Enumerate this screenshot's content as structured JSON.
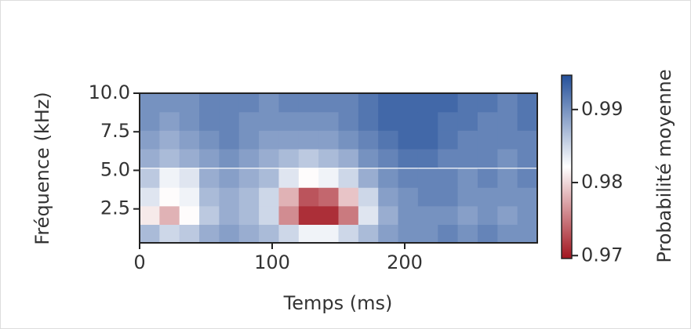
{
  "chart_data": {
    "type": "heatmap",
    "xlabel": "Temps (ms)",
    "ylabel": "Fréquence (kHz)",
    "colorbar_label": "Probabilité moyenne",
    "x": [
      7.5,
      22.5,
      37.5,
      52.5,
      67.5,
      82.5,
      97.5,
      112.5,
      127.5,
      142.5,
      157.5,
      172.5,
      187.5,
      202.5,
      217.5,
      232.5,
      247.5,
      262.5,
      277.5,
      292.5
    ],
    "y": [
      0.9,
      2.1,
      3.3,
      4.5,
      5.8,
      7.0,
      8.2,
      9.4
    ],
    "z": [
      [
        0.987,
        0.985,
        0.986,
        0.988,
        0.989,
        0.988,
        0.987,
        0.985,
        0.983,
        0.983,
        0.985,
        0.987,
        0.989,
        0.99,
        0.99,
        0.991,
        0.99,
        0.991,
        0.99,
        0.99
      ],
      [
        0.981,
        0.978,
        0.982,
        0.986,
        0.988,
        0.987,
        0.985,
        0.976,
        0.971,
        0.971,
        0.975,
        0.984,
        0.988,
        0.99,
        0.99,
        0.99,
        0.989,
        0.99,
        0.989,
        0.99
      ],
      [
        0.984,
        0.982,
        0.983,
        0.987,
        0.988,
        0.987,
        0.985,
        0.978,
        0.973,
        0.974,
        0.979,
        0.985,
        0.989,
        0.99,
        0.991,
        0.991,
        0.99,
        0.99,
        0.99,
        0.99
      ],
      [
        0.986,
        0.983,
        0.984,
        0.988,
        0.989,
        0.988,
        0.987,
        0.984,
        0.982,
        0.983,
        0.985,
        0.988,
        0.99,
        0.991,
        0.991,
        0.991,
        0.99,
        0.991,
        0.99,
        0.991
      ],
      [
        0.988,
        0.987,
        0.988,
        0.989,
        0.99,
        0.989,
        0.988,
        0.987,
        0.986,
        0.987,
        0.988,
        0.99,
        0.991,
        0.992,
        0.992,
        0.991,
        0.991,
        0.991,
        0.99,
        0.991
      ],
      [
        0.989,
        0.988,
        0.989,
        0.99,
        0.991,
        0.99,
        0.989,
        0.989,
        0.989,
        0.989,
        0.99,
        0.991,
        0.992,
        0.993,
        0.993,
        0.992,
        0.991,
        0.991,
        0.991,
        0.991
      ],
      [
        0.99,
        0.989,
        0.99,
        0.991,
        0.991,
        0.99,
        0.99,
        0.99,
        0.99,
        0.99,
        0.991,
        0.992,
        0.993,
        0.993,
        0.993,
        0.992,
        0.992,
        0.991,
        0.991,
        0.992
      ],
      [
        0.99,
        0.99,
        0.99,
        0.991,
        0.991,
        0.991,
        0.99,
        0.991,
        0.991,
        0.991,
        0.991,
        0.992,
        0.993,
        0.993,
        0.993,
        0.993,
        0.992,
        0.992,
        0.991,
        0.992
      ]
    ],
    "xlim": [
      0,
      300
    ],
    "xticks": [
      0,
      100,
      200
    ],
    "ylim": [
      0.3,
      10.0
    ],
    "yticks": [
      {
        "value": 10,
        "label": "10.0"
      },
      7.5,
      {
        "value": 5,
        "label": "5.0"
      },
      2.5
    ],
    "clim": [
      0.9696,
      0.9947
    ],
    "cticks": [
      0.97,
      0.98,
      0.99
    ],
    "colormap": [
      "#a2151f",
      "#ffffff",
      "#24509a"
    ]
  }
}
